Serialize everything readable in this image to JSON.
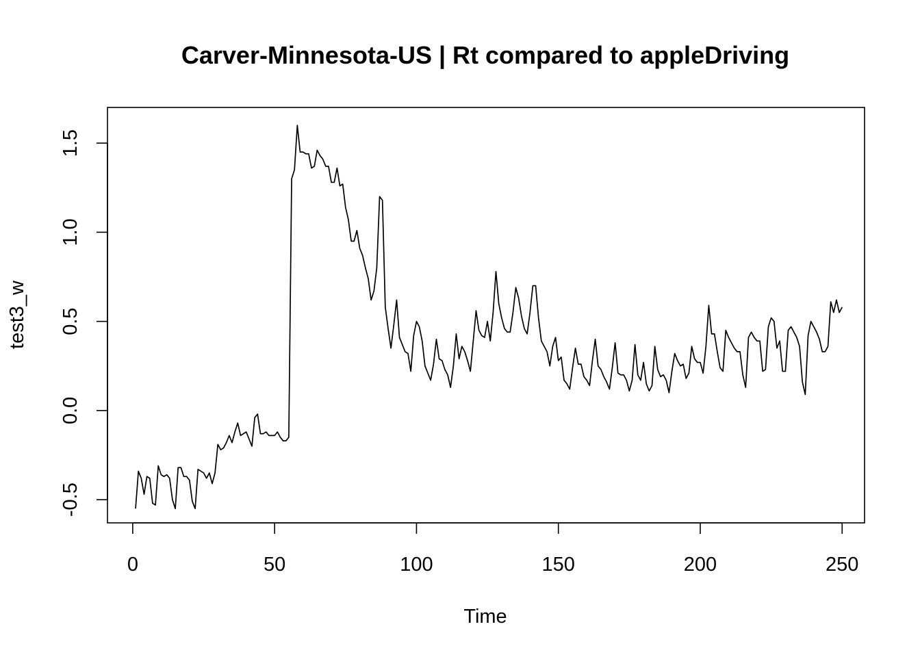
{
  "chart_data": {
    "type": "line",
    "title": "Carver-Minnesota-US | Rt compared to appleDriving",
    "xlabel": "Time",
    "ylabel": "test3_w",
    "xlim": [
      -8.9,
      257.9
    ],
    "ylim": [
      -0.63,
      1.7
    ],
    "x_ticks": [
      0,
      50,
      100,
      150,
      200,
      250
    ],
    "x_tick_labels": [
      "0",
      "50",
      "100",
      "150",
      "200",
      "250"
    ],
    "y_ticks": [
      -0.5,
      0.0,
      0.5,
      1.0,
      1.5
    ],
    "y_tick_labels": [
      "-0.5",
      "0.0",
      "0.5",
      "1.0",
      "1.5"
    ],
    "grid": false,
    "series": [
      {
        "color": "#000000",
        "x_start": 1,
        "values": [
          -0.55,
          -0.34,
          -0.38,
          -0.47,
          -0.37,
          -0.38,
          -0.52,
          -0.53,
          -0.31,
          -0.36,
          -0.37,
          -0.36,
          -0.38,
          -0.5,
          -0.55,
          -0.32,
          -0.32,
          -0.37,
          -0.37,
          -0.39,
          -0.51,
          -0.55,
          -0.33,
          -0.34,
          -0.35,
          -0.38,
          -0.35,
          -0.41,
          -0.35,
          -0.19,
          -0.22,
          -0.21,
          -0.18,
          -0.14,
          -0.18,
          -0.12,
          -0.07,
          -0.14,
          -0.13,
          -0.12,
          -0.16,
          -0.2,
          -0.04,
          -0.02,
          -0.13,
          -0.13,
          -0.12,
          -0.14,
          -0.14,
          -0.14,
          -0.12,
          -0.15,
          -0.17,
          -0.17,
          -0.15,
          1.3,
          1.35,
          1.6,
          1.45,
          1.45,
          1.44,
          1.44,
          1.36,
          1.37,
          1.46,
          1.43,
          1.41,
          1.37,
          1.37,
          1.28,
          1.28,
          1.36,
          1.26,
          1.27,
          1.14,
          1.07,
          0.95,
          0.95,
          1.01,
          0.91,
          0.87,
          0.8,
          0.74,
          0.62,
          0.67,
          0.8,
          1.2,
          1.18,
          0.58,
          0.46,
          0.35,
          0.48,
          0.62,
          0.41,
          0.37,
          0.33,
          0.32,
          0.22,
          0.42,
          0.5,
          0.47,
          0.39,
          0.25,
          0.21,
          0.17,
          0.26,
          0.4,
          0.29,
          0.28,
          0.23,
          0.2,
          0.13,
          0.25,
          0.43,
          0.29,
          0.36,
          0.33,
          0.28,
          0.22,
          0.39,
          0.56,
          0.45,
          0.42,
          0.41,
          0.5,
          0.39,
          0.55,
          0.78,
          0.6,
          0.52,
          0.46,
          0.44,
          0.44,
          0.55,
          0.69,
          0.63,
          0.53,
          0.46,
          0.43,
          0.55,
          0.7,
          0.7,
          0.52,
          0.39,
          0.36,
          0.33,
          0.25,
          0.36,
          0.41,
          0.28,
          0.3,
          0.17,
          0.15,
          0.12,
          0.24,
          0.35,
          0.26,
          0.26,
          0.19,
          0.17,
          0.14,
          0.28,
          0.4,
          0.25,
          0.23,
          0.19,
          0.16,
          0.12,
          0.24,
          0.38,
          0.21,
          0.2,
          0.2,
          0.17,
          0.11,
          0.17,
          0.37,
          0.2,
          0.17,
          0.27,
          0.15,
          0.11,
          0.14,
          0.36,
          0.23,
          0.19,
          0.2,
          0.17,
          0.1,
          0.22,
          0.32,
          0.28,
          0.25,
          0.26,
          0.18,
          0.21,
          0.36,
          0.29,
          0.27,
          0.27,
          0.21,
          0.36,
          0.59,
          0.43,
          0.43,
          0.33,
          0.24,
          0.22,
          0.45,
          0.41,
          0.38,
          0.35,
          0.33,
          0.33,
          0.2,
          0.13,
          0.41,
          0.44,
          0.41,
          0.39,
          0.39,
          0.22,
          0.23,
          0.47,
          0.52,
          0.5,
          0.35,
          0.39,
          0.22,
          0.22,
          0.45,
          0.47,
          0.44,
          0.41,
          0.36,
          0.16,
          0.09,
          0.42,
          0.5,
          0.47,
          0.44,
          0.4,
          0.33,
          0.33,
          0.36,
          0.61,
          0.55,
          0.62,
          0.55,
          0.58
        ]
      }
    ]
  }
}
